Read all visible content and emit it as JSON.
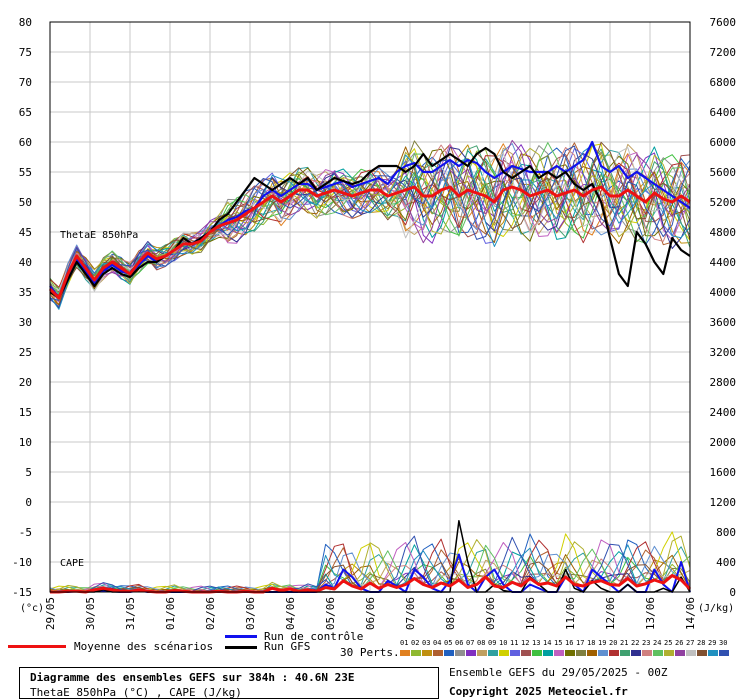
{
  "chart_data": {
    "type": "line",
    "title": "Diagramme des ensembles GEFS sur 384h : 40.6N 23E",
    "subtitle": "ThetaE 850hPa (°C) , CAPE (J/kg)",
    "left_unit": "(°c)",
    "right_unit": "(J/kg)",
    "left_ticks": [
      "80",
      "75",
      "70",
      "65",
      "60",
      "55",
      "50",
      "45",
      "40",
      "35",
      "30",
      "25",
      "20",
      "15",
      "10",
      "5",
      "0",
      "-5",
      "-10",
      "-15"
    ],
    "right_ticks": [
      "7600",
      "7200",
      "6800",
      "6400",
      "6000",
      "5600",
      "5200",
      "4800",
      "4400",
      "4000",
      "3600",
      "3200",
      "2800",
      "2400",
      "2000",
      "1600",
      "1200",
      "800",
      "400",
      "0"
    ],
    "x_ticks": [
      "29/05",
      "30/05",
      "31/05",
      "01/06",
      "02/06",
      "03/06",
      "04/06",
      "05/06",
      "06/06",
      "07/06",
      "08/06",
      "09/06",
      "10/06",
      "11/06",
      "12/06",
      "13/06",
      "14/06"
    ],
    "theta_label": "ThetaE 850hPa",
    "cape_label": "CAPE",
    "theta": {
      "mean": [
        35.5,
        34,
        38,
        41,
        39,
        37,
        39,
        40,
        39,
        38,
        40,
        41.5,
        40.5,
        41,
        42,
        43,
        43,
        43.5,
        45,
        46,
        46.5,
        47,
        48,
        49,
        50,
        51,
        50,
        51,
        52,
        52,
        51,
        51.5,
        52,
        51.5,
        51,
        51.5,
        52,
        52,
        51,
        51.5,
        52,
        52.5,
        51,
        51,
        52,
        52.5,
        51,
        52,
        51.5,
        51,
        50,
        52,
        52.5,
        52,
        51,
        51.5,
        52,
        51,
        51.5,
        52,
        51,
        52,
        52.5,
        51,
        51,
        52,
        51,
        50,
        51.5,
        50.5,
        50,
        51,
        50
      ],
      "control": [
        36,
        34,
        37.5,
        40.5,
        38.5,
        36.5,
        38.5,
        39.5,
        38.5,
        38,
        39.5,
        41,
        40,
        41,
        42,
        43,
        43,
        43.5,
        45,
        46,
        47,
        47.5,
        48.5,
        49,
        51,
        52,
        51,
        52,
        53,
        53,
        52,
        52.5,
        53,
        53.5,
        52.5,
        53,
        53.5,
        54,
        53,
        55,
        56,
        56.5,
        55,
        55,
        56,
        57,
        56,
        57,
        56.5,
        55,
        54,
        55,
        56,
        55.5,
        55,
        55,
        55,
        56,
        55,
        56,
        57,
        60,
        56,
        55,
        56,
        54,
        55,
        54,
        53,
        52,
        51,
        50,
        49
      ],
      "gfs": [
        35,
        34,
        37,
        40,
        38,
        36,
        38,
        39,
        38,
        37.5,
        39,
        40,
        40,
        41,
        42,
        44,
        43,
        44,
        45,
        47,
        48,
        50,
        52,
        54,
        53,
        52,
        53,
        54,
        53,
        54,
        52,
        53,
        54,
        53.5,
        53,
        53.5,
        55,
        56,
        56,
        56,
        55,
        56,
        58,
        56,
        57,
        58,
        57,
        56,
        58,
        59,
        58,
        55,
        54,
        55,
        56,
        54,
        55,
        54,
        55,
        53,
        52,
        53,
        50,
        44,
        38,
        36,
        45,
        43,
        40,
        38,
        44,
        42,
        41
      ]
    },
    "cape": {
      "mean": [
        0,
        0,
        10,
        10,
        0,
        30,
        50,
        30,
        10,
        10,
        30,
        10,
        0,
        0,
        20,
        10,
        0,
        0,
        0,
        10,
        0,
        0,
        10,
        0,
        0,
        50,
        20,
        40,
        10,
        30,
        10,
        60,
        40,
        150,
        80,
        40,
        120,
        50,
        100,
        60,
        100,
        180,
        100,
        60,
        120,
        80,
        160,
        60,
        100,
        200,
        80,
        60,
        130,
        80,
        180,
        100,
        120,
        80,
        200,
        100,
        80,
        130,
        150,
        100,
        90,
        180,
        80,
        110,
        160,
        120,
        220,
        160,
        40
      ],
      "control": [
        0,
        0,
        0,
        10,
        0,
        20,
        20,
        10,
        0,
        0,
        20,
        0,
        0,
        0,
        0,
        0,
        0,
        0,
        0,
        0,
        0,
        0,
        0,
        0,
        0,
        0,
        0,
        0,
        0,
        0,
        0,
        100,
        50,
        300,
        200,
        50,
        0,
        0,
        150,
        80,
        0,
        300,
        200,
        50,
        0,
        150,
        500,
        100,
        0,
        200,
        300,
        100,
        0,
        0,
        100,
        50,
        0,
        0,
        200,
        100,
        0,
        300,
        200,
        100,
        0,
        100,
        0,
        0,
        300,
        100,
        0,
        400,
        0
      ],
      "gfs": [
        0,
        0,
        0,
        10,
        0,
        0,
        30,
        0,
        0,
        0,
        20,
        0,
        0,
        0,
        0,
        0,
        0,
        0,
        0,
        0,
        0,
        0,
        0,
        0,
        0,
        0,
        0,
        0,
        0,
        0,
        0,
        0,
        0,
        0,
        0,
        0,
        0,
        0,
        0,
        0,
        0,
        0,
        0,
        0,
        0,
        0,
        950,
        400,
        0,
        0,
        100,
        20,
        0,
        0,
        200,
        100,
        0,
        0,
        300,
        50,
        0,
        150,
        50,
        0,
        0,
        100,
        0,
        0,
        0,
        50,
        0,
        200,
        0
      ]
    },
    "theta_ylim": [
      -15,
      80
    ],
    "cape_ylim": [
      0,
      7600
    ],
    "grid": true
  },
  "colors": {
    "mean": "#ee1111",
    "control": "#1111ee",
    "gfs": "#000000",
    "members": [
      "#e08020",
      "#8fb830",
      "#c09010",
      "#b06030",
      "#2060c0",
      "#909090",
      "#8030c0",
      "#c0a060",
      "#30a0a0",
      "#d0d000",
      "#6060e0",
      "#a05050",
      "#40c040",
      "#00a0a0",
      "#c060c0",
      "#707000",
      "#808040",
      "#a06000",
      "#6090d0",
      "#b03030",
      "#40a070",
      "#303090",
      "#d08080",
      "#60c060",
      "#b0b030",
      "#9040a0",
      "#c0c0c0",
      "#805030",
      "#2090c0",
      "#3050b0"
    ]
  },
  "legend": {
    "mean": "Moyenne des scénarios",
    "control": "Run de contrôle",
    "gfs": "Run GFS",
    "perts": "30 Perts.",
    "perts_numbers": [
      "01",
      "02",
      "03",
      "04",
      "05",
      "06",
      "07",
      "08",
      "09",
      "10",
      "11",
      "12",
      "13",
      "14",
      "15",
      "16",
      "17",
      "18",
      "19",
      "20",
      "21",
      "22",
      "23",
      "24",
      "25",
      "26",
      "27",
      "28",
      "29",
      "30"
    ]
  },
  "footer": {
    "title": "Diagramme des ensembles GEFS sur 384h : 40.6N 23E",
    "subtitle": "ThetaE 850hPa (°C) , CAPE (J/kg)",
    "run": "Ensemble GEFS du 29/05/2025 - 00Z",
    "copyright": "Copyright 2025 Meteociel.fr"
  }
}
